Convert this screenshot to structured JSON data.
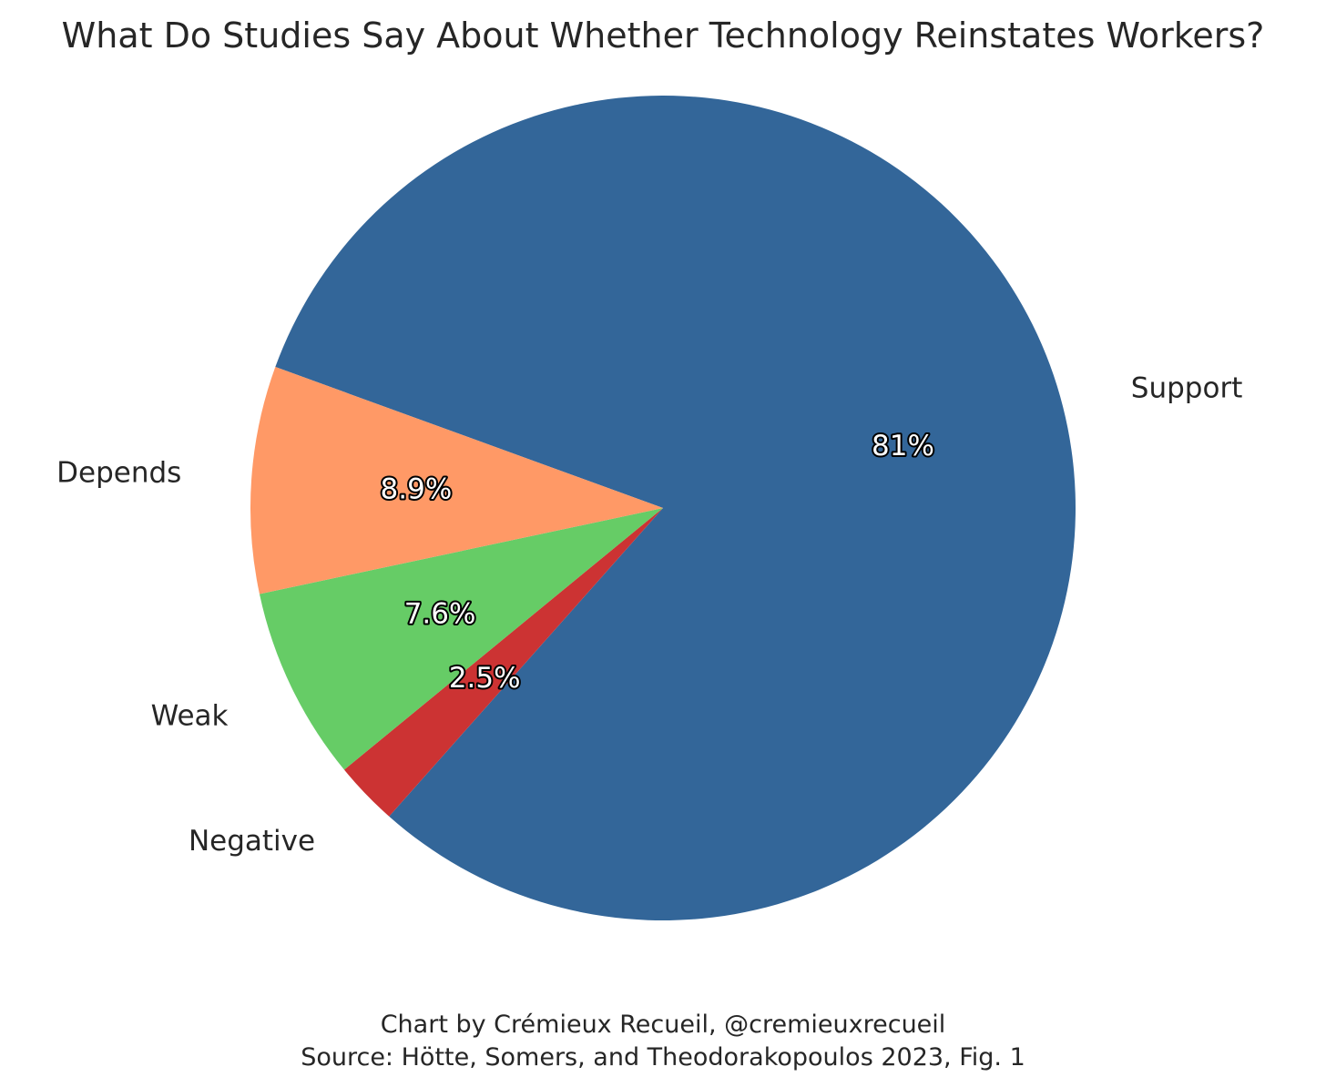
{
  "chart_data": {
    "type": "pie",
    "title": "What Do Studies Say About Whether Technology Reinstates Workers?",
    "slices": [
      {
        "label": "Support",
        "value": 81,
        "pct_label": "81%",
        "color": "#336699"
      },
      {
        "label": "Negative",
        "value": 2.5,
        "pct_label": "2.5%",
        "color": "#cc3333"
      },
      {
        "label": "Weak",
        "value": 7.6,
        "pct_label": "7.6%",
        "color": "#66cc66"
      },
      {
        "label": "Depends",
        "value": 8.9,
        "pct_label": "8.9%",
        "color": "#ff9966"
      }
    ],
    "legend": "none"
  },
  "caption": {
    "line1": "Chart by Crémieux Recueil, @cremieuxrecueil",
    "line2": "Source: Hötte, Somers, and Theodorakopoulos 2023, Fig. 1"
  }
}
